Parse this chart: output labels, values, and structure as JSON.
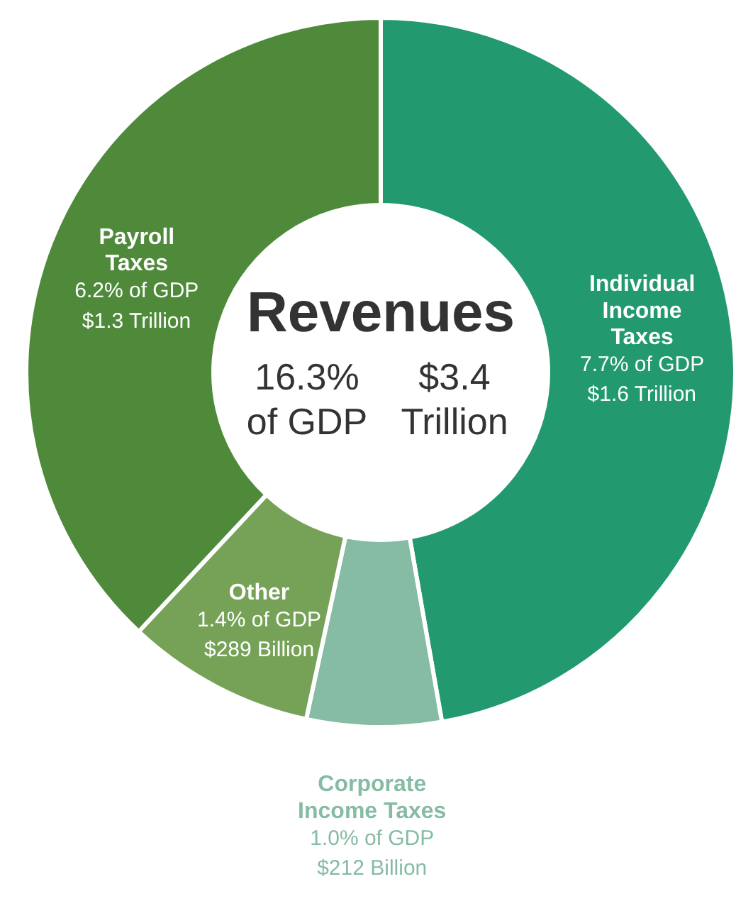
{
  "chart_data": {
    "type": "donut",
    "title": "Revenues",
    "categories": [
      "Individual Income Taxes",
      "Corporate Income Taxes",
      "Other",
      "Payroll Taxes"
    ],
    "values": [
      7.7,
      1.0,
      1.4,
      6.2
    ],
    "colors": [
      "#22996f",
      "#86bba4",
      "#76a257",
      "#4f8a3b"
    ],
    "value_labels": [
      "7.7% of GDP\n$1.6 Trillion",
      "1.0% of GDP\n$212 Billion",
      "1.4% of GDP\n$289 Billion",
      "6.2% of GDP\n$1.3 Trillion"
    ],
    "annotations": [
      "16.3% of GDP",
      "$3.4 Trillion"
    ]
  }
}
